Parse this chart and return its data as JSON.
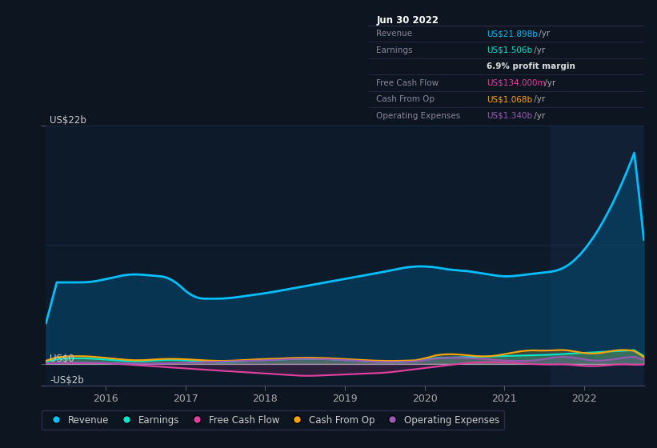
{
  "bg_color": "#0d1520",
  "plot_bg_color": "#0d1a2a",
  "plot_bg_highlight": "#112035",
  "grid_color": "#1e3050",
  "ylim_min": -2000000000.0,
  "ylim_max": 22000000000.0,
  "xlim_min": 2015.25,
  "xlim_max": 2022.75,
  "xlabel_years": [
    2016,
    2017,
    2018,
    2019,
    2020,
    2021,
    2022
  ],
  "highlight_start": 2021.58,
  "highlight_end": 2022.75,
  "series_colors": {
    "Revenue": "#00bfff",
    "Earnings": "#00e5cc",
    "Free Cash Flow": "#e040a0",
    "Cash From Op": "#ffa500",
    "Operating Expenses": "#9b59b6"
  },
  "revenue_fill_color": "#005580",
  "legend_dot_colors": [
    "#00bfff",
    "#00e5cc",
    "#e040a0",
    "#ffa500",
    "#9b59b6"
  ],
  "legend_labels": [
    "Revenue",
    "Earnings",
    "Free Cash Flow",
    "Cash From Op",
    "Operating Expenses"
  ],
  "info_box": {
    "title": "Jun 30 2022",
    "rows": [
      {
        "label": "Revenue",
        "value": "US$21.898b /yr",
        "value_color": "#00bfff"
      },
      {
        "label": "Earnings",
        "value": "US$1.506b /yr",
        "value_color": "#00e5cc"
      },
      {
        "label": "",
        "value": "6.9% profit margin",
        "value_color": "#dddddd"
      },
      {
        "label": "Free Cash Flow",
        "value": "US$134.000m /yr",
        "value_color": "#e040a0"
      },
      {
        "label": "Cash From Op",
        "value": "US$1.068b /yr",
        "value_color": "#ffa500"
      },
      {
        "label": "Operating Expenses",
        "value": "US$1.340b /yr",
        "value_color": "#9b59b6"
      }
    ]
  }
}
